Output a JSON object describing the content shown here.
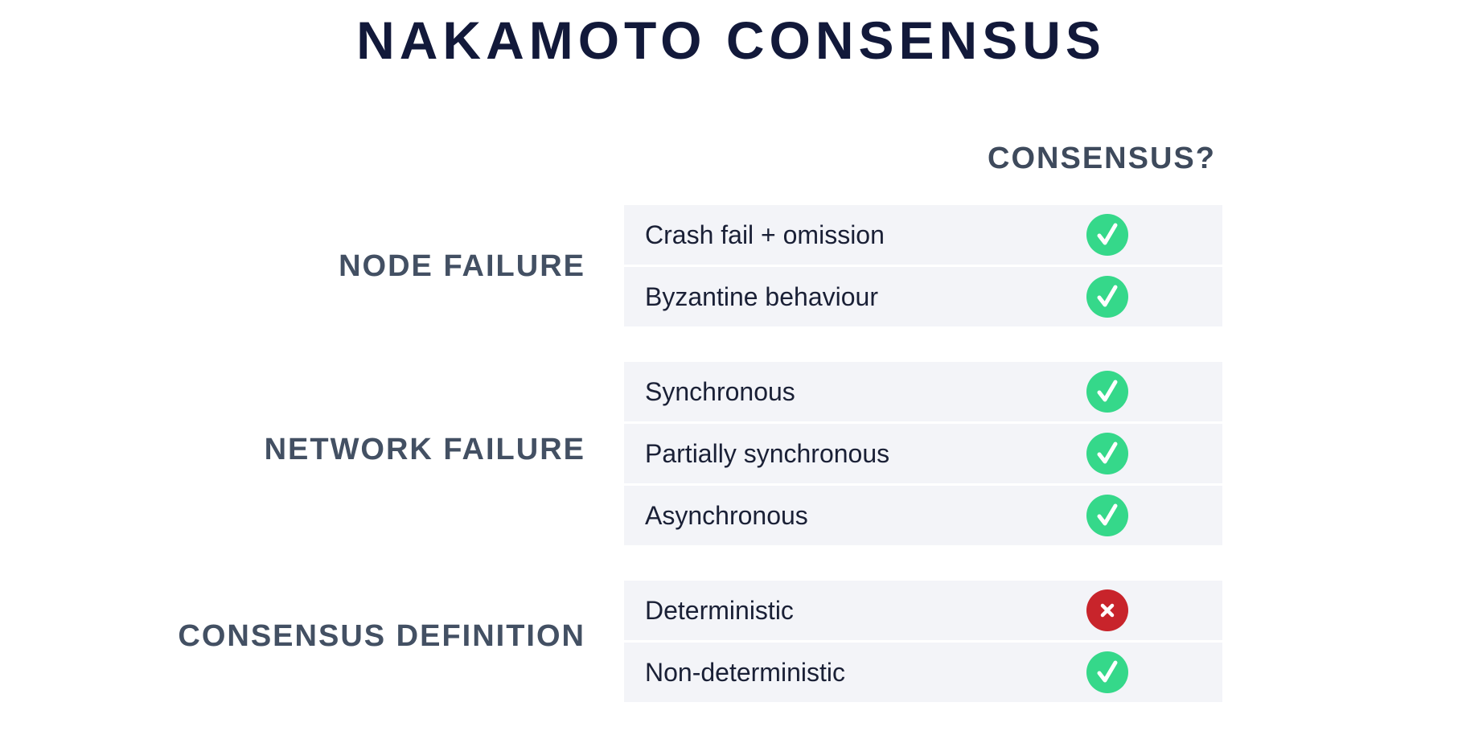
{
  "title": "NAKAMOTO CONSENSUS",
  "column_header": "CONSENSUS?",
  "colors": {
    "yes": "#35d88a",
    "no": "#c8242b",
    "title": "#12193a",
    "label": "#435063",
    "row_bg": "#f3f4f8"
  },
  "groups": [
    {
      "label": "NODE FAILURE",
      "rows": [
        {
          "label": "Crash fail + omission",
          "consensus": "yes",
          "icon": "check-icon"
        },
        {
          "label": "Byzantine behaviour",
          "consensus": "yes",
          "icon": "check-icon"
        }
      ]
    },
    {
      "label": "NETWORK FAILURE",
      "rows": [
        {
          "label": "Synchronous",
          "consensus": "yes",
          "icon": "check-icon"
        },
        {
          "label": "Partially synchronous",
          "consensus": "yes",
          "icon": "check-icon"
        },
        {
          "label": "Asynchronous",
          "consensus": "yes",
          "icon": "check-icon"
        }
      ]
    },
    {
      "label": "CONSENSUS DEFINITION",
      "rows": [
        {
          "label": "Deterministic",
          "consensus": "no",
          "icon": "cross-icon"
        },
        {
          "label": "Non-deterministic",
          "consensus": "yes",
          "icon": "check-icon"
        }
      ]
    }
  ]
}
